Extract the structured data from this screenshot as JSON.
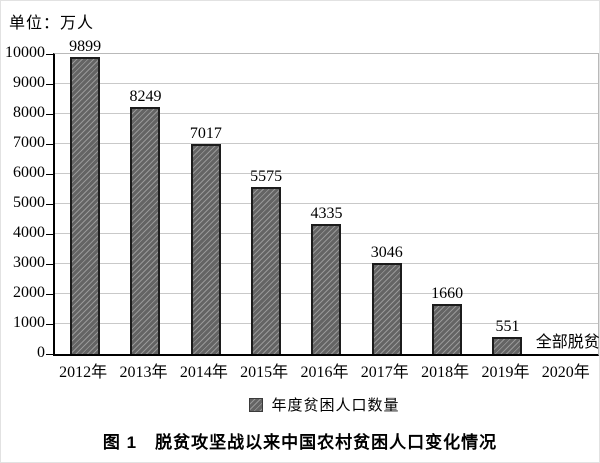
{
  "colors": {
    "bar_fill": "#646464",
    "bar_hatch": "#989898",
    "bar_border": "#1c1c1c",
    "gridline": "#c9c9c9",
    "frame": "#b9b9b9",
    "axis": "#000000",
    "text": "#000000",
    "background": "#ffffff"
  },
  "chart_data": {
    "type": "bar",
    "title": "图 1　脱贫攻坚战以来中国农村贫困人口变化情况",
    "unit": "单位：万人",
    "categories": [
      "2012年",
      "2013年",
      "2014年",
      "2015年",
      "2016年",
      "2017年",
      "2018年",
      "2019年",
      "2020年"
    ],
    "values": [
      9899,
      8249,
      7017,
      5575,
      4335,
      3046,
      1660,
      551,
      null
    ],
    "bar_labels": [
      "9899",
      "8249",
      "7017",
      "5575",
      "4335",
      "3046",
      "1660",
      "551"
    ],
    "annotations": [
      {
        "category": "2020年",
        "text": "全部脱贫"
      }
    ],
    "xlabel": "",
    "ylabel": "单位：万人",
    "ylim": [
      0,
      10000
    ],
    "ytick_interval": 1000,
    "grid": true,
    "legend_entries": [
      "年度贫困人口数量"
    ],
    "legend_position": "bottom",
    "hatch": "diagonal-forward"
  }
}
